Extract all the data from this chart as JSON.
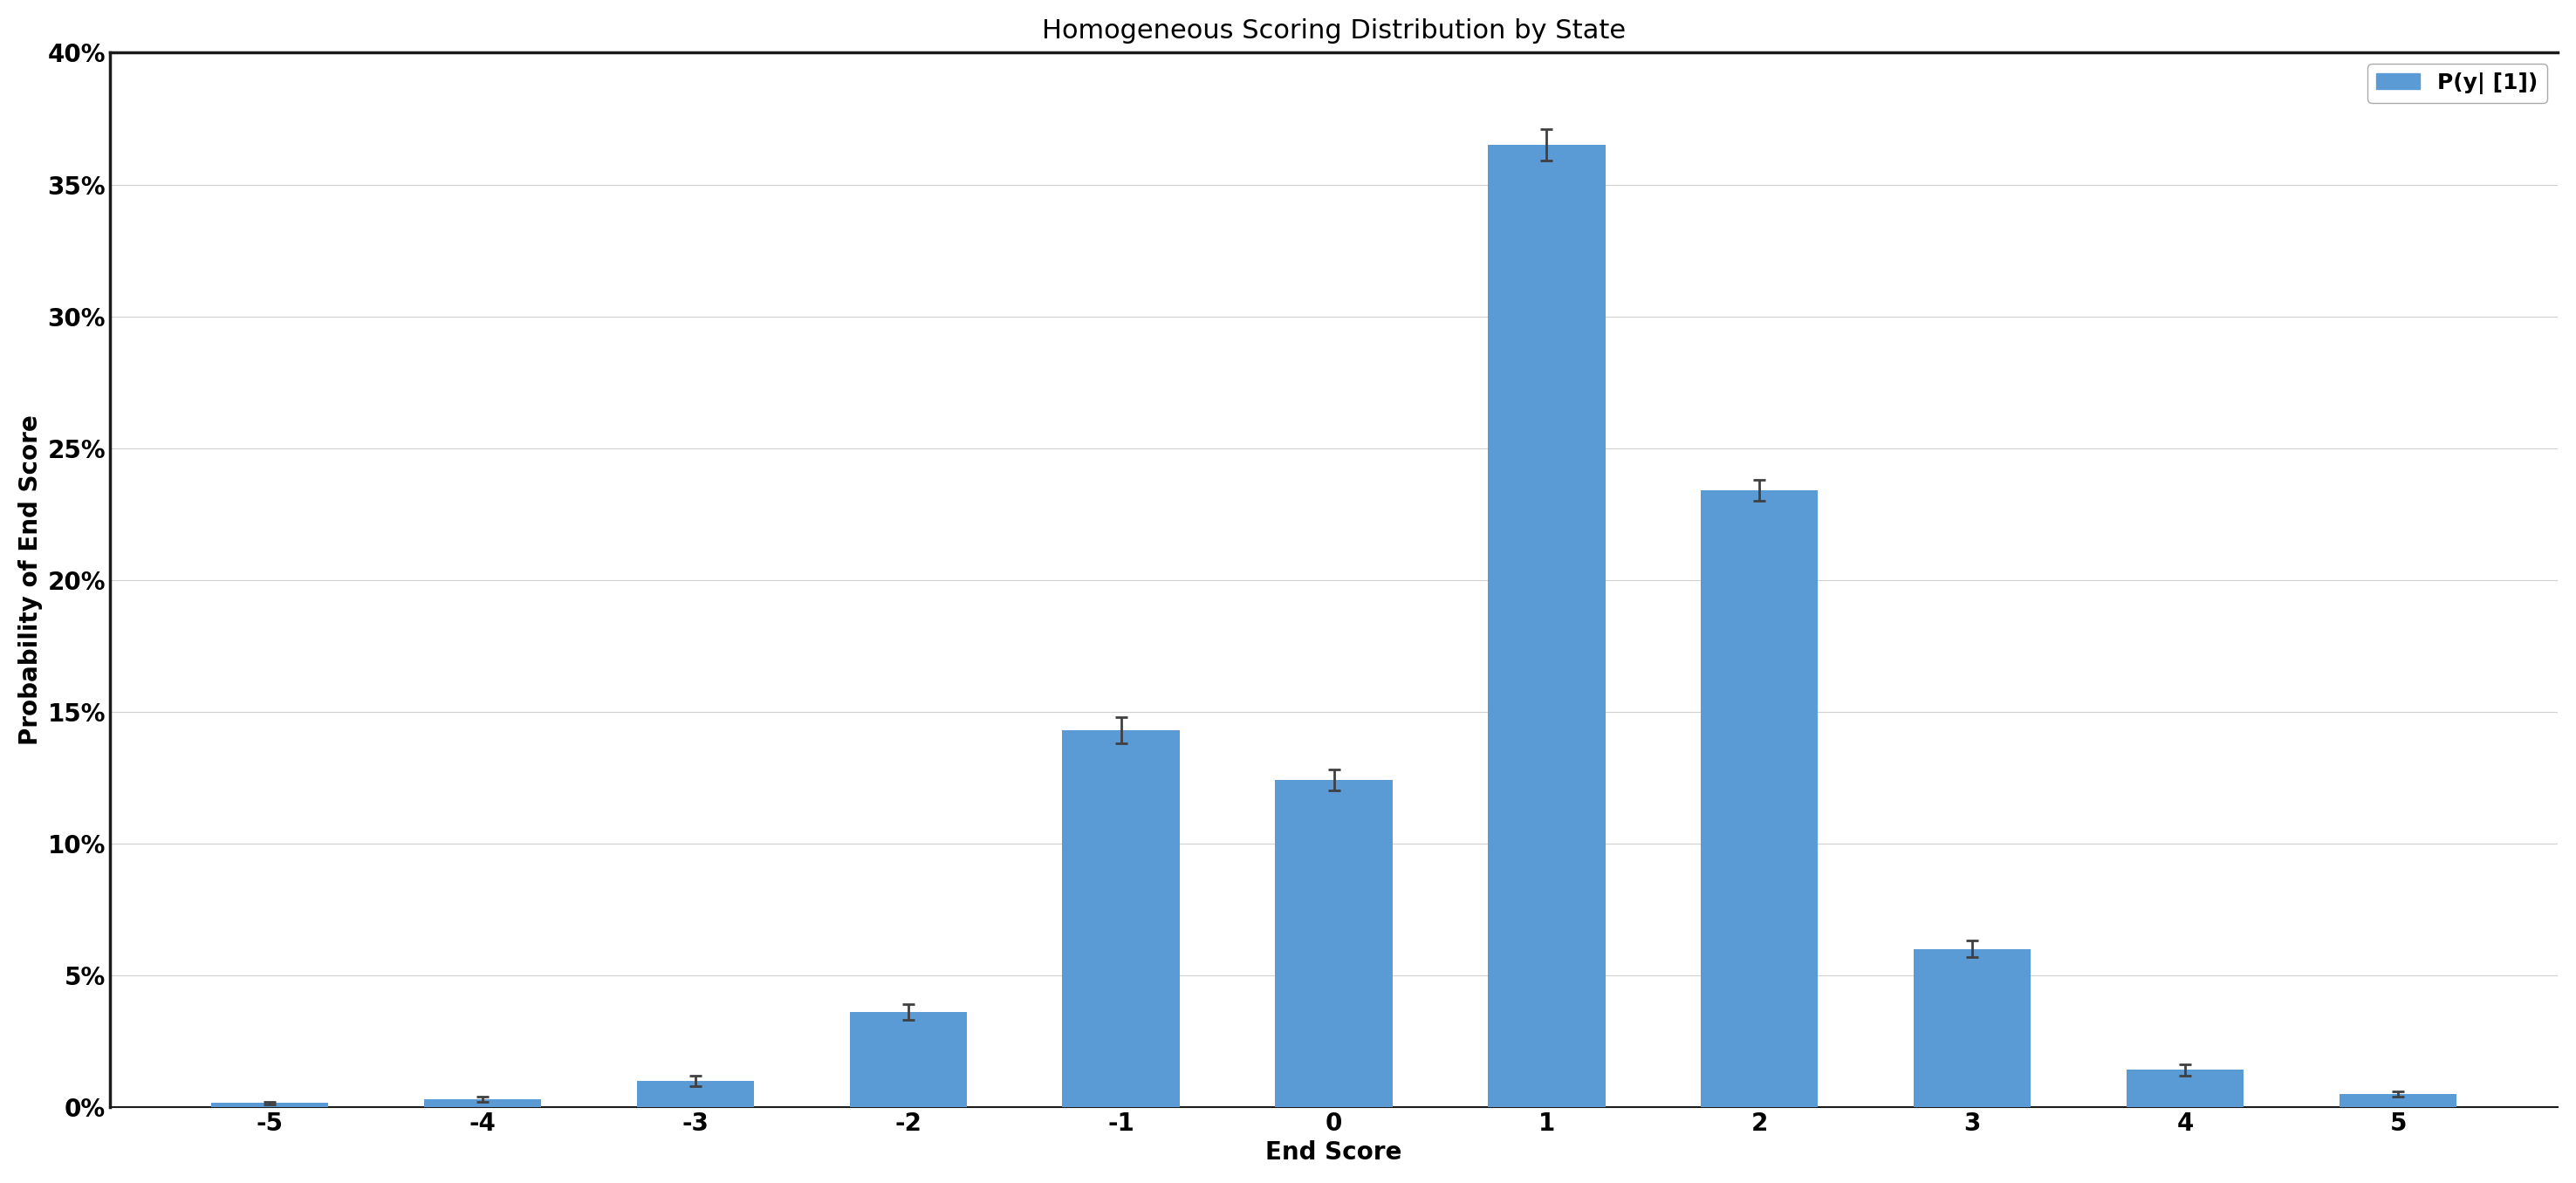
{
  "title": "Homogeneous Scoring Distribution by State",
  "xlabel": "End Score",
  "ylabel": "Probability of End Score",
  "categories": [
    -5,
    -4,
    -3,
    -2,
    -1,
    0,
    1,
    2,
    3,
    4,
    5
  ],
  "values": [
    0.0015,
    0.003,
    0.01,
    0.036,
    0.143,
    0.124,
    0.365,
    0.234,
    0.06,
    0.014,
    0.005
  ],
  "errors": [
    0.0005,
    0.001,
    0.002,
    0.003,
    0.005,
    0.004,
    0.006,
    0.004,
    0.003,
    0.002,
    0.001
  ],
  "bar_color": "#5b9bd5",
  "error_color": "#404040",
  "ylim": [
    0,
    0.4
  ],
  "yticks": [
    0,
    0.05,
    0.1,
    0.15,
    0.2,
    0.25,
    0.3,
    0.35,
    0.4
  ],
  "ytick_labels": [
    "0%",
    "5%",
    "10%",
    "15%",
    "20%",
    "25%",
    "30%",
    "35%",
    "40%"
  ],
  "legend_label": "P(y| [1])",
  "background_color": "#ffffff",
  "grid_color": "#d0d0d0",
  "title_fontsize": 22,
  "label_fontsize": 20,
  "tick_fontsize": 20,
  "legend_fontsize": 18
}
